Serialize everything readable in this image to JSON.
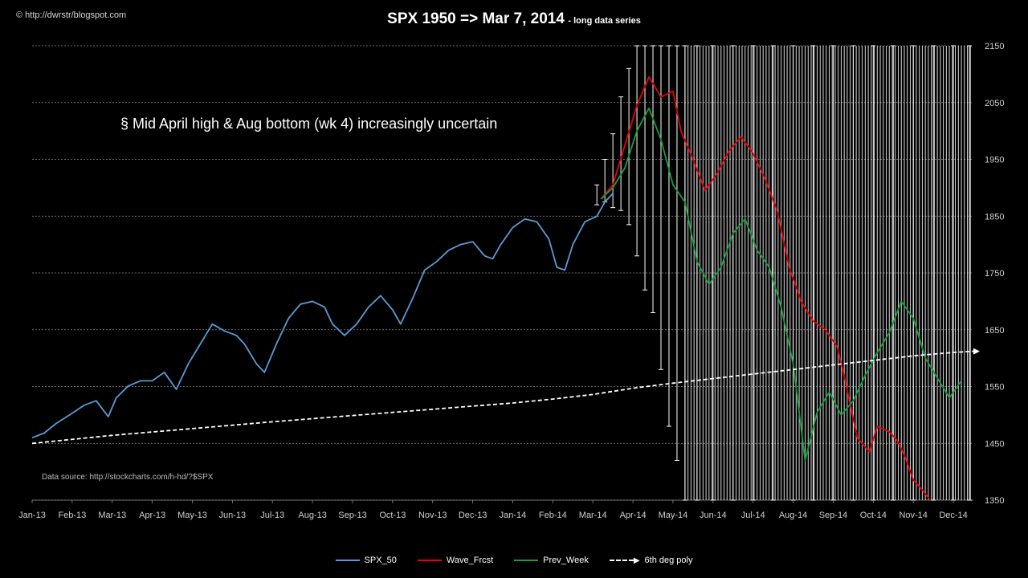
{
  "header": {
    "copyright": "© http://dwrstr/blogspot.com",
    "title": "SPX 1950 => Mar 7, 2014",
    "subtitle": "- long data series"
  },
  "annotation": "§ Mid April high & Aug bottom (wk 4) increasingly uncertain",
  "source": "Data source: http://stockcharts.com/h-hd/?$SPX",
  "chart_data": {
    "type": "line",
    "x_labels": [
      "Jan-13",
      "Feb-13",
      "Mar-13",
      "Apr-13",
      "May-13",
      "Jun-13",
      "Jul-13",
      "Aug-13",
      "Sep-13",
      "Oct-13",
      "Nov-13",
      "Dec-13",
      "Jan-14",
      "Feb-14",
      "Mar-14",
      "Apr-14",
      "May-14",
      "Jun-14",
      "Jul-14",
      "Aug-14",
      "Sep-14",
      "Oct-14",
      "Nov-14",
      "Dec-14"
    ],
    "x_range": [
      0,
      23.5
    ],
    "y_axis": {
      "min": 1350,
      "max": 2150,
      "ticks": [
        2150,
        2050,
        1950,
        1850,
        1750,
        1650,
        1550,
        1450,
        1350
      ],
      "position": "right"
    },
    "grid": {
      "horizontal": true,
      "style": "dashed"
    },
    "legend_position": "bottom",
    "series": [
      {
        "name": "SPX_50",
        "color": "#5b9bd5",
        "points": [
          [
            0,
            1460
          ],
          [
            0.3,
            1468
          ],
          [
            0.6,
            1485
          ],
          [
            1,
            1503
          ],
          [
            1.3,
            1517
          ],
          [
            1.6,
            1525
          ],
          [
            1.9,
            1497
          ],
          [
            2.1,
            1530
          ],
          [
            2.4,
            1551
          ],
          [
            2.7,
            1560
          ],
          [
            3,
            1560
          ],
          [
            3.3,
            1575
          ],
          [
            3.6,
            1545
          ],
          [
            3.9,
            1590
          ],
          [
            4.2,
            1625
          ],
          [
            4.5,
            1660
          ],
          [
            4.8,
            1648
          ],
          [
            5.1,
            1640
          ],
          [
            5.3,
            1625
          ],
          [
            5.6,
            1590
          ],
          [
            5.8,
            1575
          ],
          [
            6.1,
            1625
          ],
          [
            6.4,
            1670
          ],
          [
            6.7,
            1695
          ],
          [
            7,
            1700
          ],
          [
            7.3,
            1690
          ],
          [
            7.5,
            1660
          ],
          [
            7.8,
            1640
          ],
          [
            8.1,
            1660
          ],
          [
            8.4,
            1690
          ],
          [
            8.7,
            1710
          ],
          [
            9,
            1685
          ],
          [
            9.2,
            1660
          ],
          [
            9.5,
            1705
          ],
          [
            9.8,
            1755
          ],
          [
            10.1,
            1770
          ],
          [
            10.4,
            1790
          ],
          [
            10.7,
            1800
          ],
          [
            11,
            1805
          ],
          [
            11.3,
            1780
          ],
          [
            11.5,
            1775
          ],
          [
            11.7,
            1800
          ],
          [
            12,
            1830
          ],
          [
            12.3,
            1845
          ],
          [
            12.6,
            1840
          ],
          [
            12.9,
            1810
          ],
          [
            13.1,
            1760
          ],
          [
            13.3,
            1755
          ],
          [
            13.5,
            1800
          ],
          [
            13.8,
            1840
          ],
          [
            14.1,
            1850
          ],
          [
            14.3,
            1875
          ],
          [
            14.5,
            1890
          ]
        ]
      },
      {
        "name": "Wave_Frcst",
        "color": "#e8000b",
        "points": [
          [
            14.2,
            1880
          ],
          [
            14.5,
            1905
          ],
          [
            14.8,
            1975
          ],
          [
            15.1,
            2045
          ],
          [
            15.4,
            2095
          ],
          [
            15.7,
            2060
          ],
          [
            16,
            2070
          ],
          [
            16.2,
            2000
          ],
          [
            16.5,
            1950
          ],
          [
            16.8,
            1895
          ],
          [
            17.1,
            1925
          ],
          [
            17.4,
            1965
          ],
          [
            17.7,
            1990
          ],
          [
            18,
            1960
          ],
          [
            18.3,
            1915
          ],
          [
            18.6,
            1860
          ],
          [
            18.9,
            1760
          ],
          [
            19.2,
            1700
          ],
          [
            19.5,
            1665
          ],
          [
            19.8,
            1650
          ],
          [
            20.1,
            1620
          ],
          [
            20.3,
            1560
          ],
          [
            20.6,
            1460
          ],
          [
            20.9,
            1435
          ],
          [
            21.1,
            1480
          ],
          [
            21.4,
            1470
          ],
          [
            21.6,
            1455
          ],
          [
            21.8,
            1425
          ],
          [
            22,
            1385
          ],
          [
            22.2,
            1370
          ],
          [
            22.4,
            1352
          ]
        ]
      },
      {
        "name": "Prev_Week",
        "color": "#14a03c",
        "points": [
          [
            14.2,
            1880
          ],
          [
            14.5,
            1900
          ],
          [
            14.8,
            1935
          ],
          [
            15.1,
            2000
          ],
          [
            15.4,
            2040
          ],
          [
            15.7,
            1985
          ],
          [
            16,
            1905
          ],
          [
            16.3,
            1875
          ],
          [
            16.6,
            1770
          ],
          [
            16.9,
            1730
          ],
          [
            17.2,
            1760
          ],
          [
            17.5,
            1820
          ],
          [
            17.8,
            1845
          ],
          [
            18.1,
            1790
          ],
          [
            18.4,
            1760
          ],
          [
            18.7,
            1690
          ],
          [
            19,
            1590
          ],
          [
            19.3,
            1420
          ],
          [
            19.6,
            1505
          ],
          [
            19.9,
            1540
          ],
          [
            20.2,
            1500
          ],
          [
            20.5,
            1525
          ],
          [
            20.8,
            1570
          ],
          [
            21.1,
            1610
          ],
          [
            21.4,
            1645
          ],
          [
            21.7,
            1700
          ],
          [
            22,
            1670
          ],
          [
            22.3,
            1600
          ],
          [
            22.6,
            1565
          ],
          [
            22.9,
            1530
          ],
          [
            23.2,
            1560
          ]
        ]
      },
      {
        "name": "6th deg poly",
        "color": "#ffffff",
        "style": "dashed",
        "points": [
          [
            0,
            1450
          ],
          [
            2,
            1464
          ],
          [
            4,
            1476
          ],
          [
            6,
            1488
          ],
          [
            8,
            1499
          ],
          [
            10,
            1510
          ],
          [
            12,
            1521
          ],
          [
            13,
            1528
          ],
          [
            14,
            1536
          ],
          [
            15,
            1547
          ],
          [
            16,
            1556
          ],
          [
            17,
            1564
          ],
          [
            18,
            1572
          ],
          [
            19,
            1580
          ],
          [
            20,
            1588
          ],
          [
            21,
            1596
          ],
          [
            22,
            1604
          ],
          [
            23,
            1610
          ],
          [
            23.5,
            1612
          ]
        ]
      }
    ],
    "error_bars": [
      {
        "x": 14.1,
        "low": 1870,
        "high": 1905
      },
      {
        "x": 14.3,
        "low": 1875,
        "high": 1950
      },
      {
        "x": 14.5,
        "low": 1865,
        "high": 1995
      },
      {
        "x": 14.7,
        "low": 1860,
        "high": 2060
      },
      {
        "x": 14.9,
        "low": 1835,
        "high": 2110
      },
      {
        "x": 15.1,
        "low": 1780,
        "high": 2150
      },
      {
        "x": 15.3,
        "low": 1720,
        "high": 2150
      },
      {
        "x": 15.5,
        "low": 1680,
        "high": 2150
      },
      {
        "x": 15.7,
        "low": 1580,
        "high": 2150
      },
      {
        "x": 15.9,
        "low": 1480,
        "high": 2150
      },
      {
        "x": 16.1,
        "low": 1420,
        "high": 2150
      },
      {
        "x": 16.3,
        "low": 1350,
        "high": 2150
      },
      {
        "x": 16.6,
        "low": 1350,
        "high": 2150
      },
      {
        "x": 17,
        "low": 1350,
        "high": 2150
      },
      {
        "x": 17.5,
        "low": 1350,
        "high": 2150
      },
      {
        "x": 18,
        "low": 1350,
        "high": 2150
      },
      {
        "x": 18.5,
        "low": 1350,
        "high": 2150
      },
      {
        "x": 19,
        "low": 1350,
        "high": 2150
      },
      {
        "x": 19.5,
        "low": 1350,
        "high": 2150
      },
      {
        "x": 20,
        "low": 1350,
        "high": 2150
      },
      {
        "x": 20.5,
        "low": 1350,
        "high": 2150
      },
      {
        "x": 21,
        "low": 1350,
        "high": 2150
      },
      {
        "x": 21.5,
        "low": 1350,
        "high": 2150
      },
      {
        "x": 22,
        "low": 1350,
        "high": 2150
      },
      {
        "x": 22.5,
        "low": 1350,
        "high": 2150
      },
      {
        "x": 23,
        "low": 1350,
        "high": 2150
      },
      {
        "x": 23.4,
        "low": 1350,
        "high": 2150
      }
    ]
  },
  "legend": [
    {
      "label": "SPX_50",
      "color": "#5b9bd5",
      "style": "solid"
    },
    {
      "label": "Wave_Frcst",
      "color": "#e8000b",
      "style": "solid"
    },
    {
      "label": "Prev_Week",
      "color": "#14a03c",
      "style": "solid"
    },
    {
      "label": "6th deg poly",
      "color": "#ffffff",
      "style": "dashed"
    }
  ]
}
